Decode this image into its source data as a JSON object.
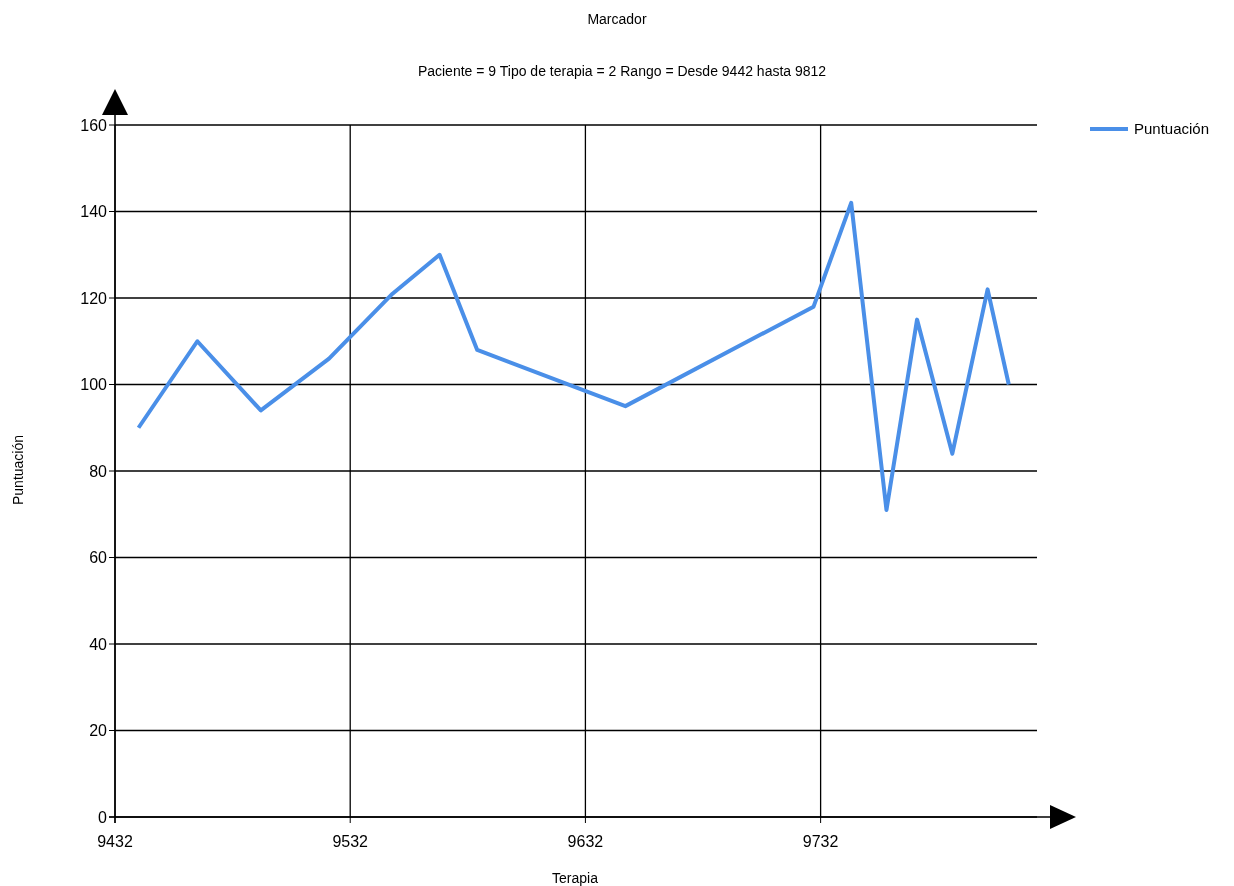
{
  "chart_data": {
    "type": "line",
    "title": "Marcador",
    "subtitle": "Paciente = 9 Tipo de terapia = 2 Rango = Desde 9442 hasta 9812",
    "xlabel": "Terapia",
    "ylabel": "Puntuación",
    "x": [
      9442,
      9467,
      9494,
      9523,
      9550,
      9570,
      9586,
      9649,
      9729,
      9745,
      9760,
      9773,
      9788,
      9803,
      9812
    ],
    "series": [
      {
        "name": "Puntuación",
        "color": "#4a8fe8",
        "values": [
          90,
          110,
          94,
          106,
          121,
          130,
          108,
          95,
          118,
          142,
          71,
          115,
          84,
          122,
          100
        ]
      }
    ],
    "xlim": [
      9432,
      9824
    ],
    "xticks": [
      9432,
      9532,
      9632,
      9732
    ],
    "ylim": [
      0,
      160
    ],
    "yticks": [
      0,
      20,
      40,
      60,
      80,
      100,
      120,
      140,
      160
    ],
    "grid": true,
    "legend": "top right",
    "marker": "none",
    "line_style": "solid"
  }
}
